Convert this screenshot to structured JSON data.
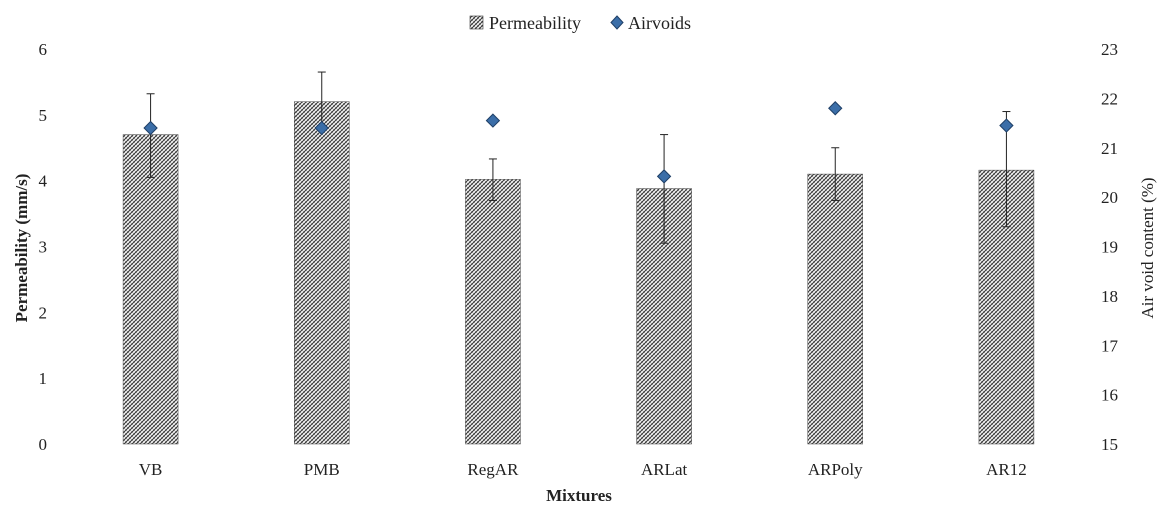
{
  "chart_data": {
    "type": "bar",
    "categories": [
      "VB",
      "PMB",
      "RegAR",
      "ARLat",
      "ARPoly",
      "AR12"
    ],
    "series": [
      {
        "name": "Permeability",
        "type": "bar",
        "axis": "left",
        "values": [
          4.7,
          5.2,
          4.02,
          3.88,
          4.1,
          4.16
        ],
        "error_upper": [
          5.32,
          5.65,
          4.33,
          4.7,
          4.5,
          5.05
        ],
        "error_lower": [
          4.05,
          4.8,
          3.7,
          3.05,
          3.7,
          3.3
        ]
      },
      {
        "name": "Airvoids",
        "type": "scatter",
        "axis": "right",
        "values": [
          21.4,
          21.4,
          21.55,
          20.42,
          21.8,
          21.45
        ]
      }
    ],
    "xlabel": "Mixtures",
    "ylabel": "Permeability (mm/s)",
    "ylabel_right": "Air void content (%)",
    "ylim": [
      0,
      6
    ],
    "y_ticks": [
      "0",
      "1",
      "2",
      "3",
      "4",
      "5",
      "6"
    ],
    "ylim_right": [
      15,
      23
    ],
    "y_ticks_right": [
      "15",
      "16",
      "17",
      "18",
      "19",
      "20",
      "21",
      "22",
      "23"
    ],
    "legend": {
      "position": "top-center",
      "items": [
        "Permeability",
        "Airvoids"
      ]
    },
    "grid": false,
    "colors": {
      "bar_hatch": "#333333",
      "marker_fill": "#3b6ea8",
      "marker_edge": "#1f3f66"
    }
  }
}
